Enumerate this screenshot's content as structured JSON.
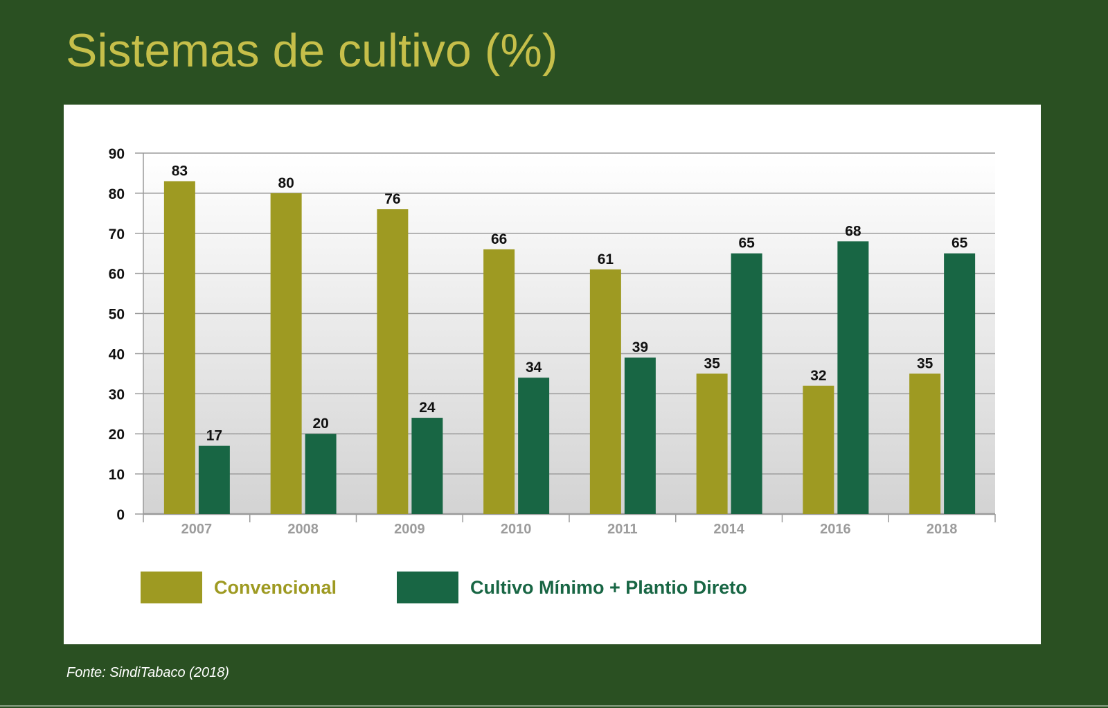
{
  "title": "Sistemas de cultivo (%)",
  "source": "Fonte: SindiTabaco (2018)",
  "colors": {
    "background": "#2a5022",
    "title": "#c6bf4a",
    "convencional": "#9e9a22",
    "cultivo_minimo": "#186644"
  },
  "chart_data": {
    "type": "bar",
    "title": "Sistemas de cultivo (%)",
    "categories": [
      "2007",
      "2008",
      "2009",
      "2010",
      "2011",
      "2014",
      "2016",
      "2018"
    ],
    "series": [
      {
        "name": "Convencional",
        "color": "#9e9a22",
        "values": [
          83,
          80,
          76,
          66,
          61,
          35,
          32,
          35
        ]
      },
      {
        "name": "Cultivo Mínimo + Plantio Direto",
        "color": "#186644",
        "values": [
          17,
          20,
          24,
          34,
          39,
          65,
          68,
          65
        ]
      }
    ],
    "yticks": [
      "0",
      "10",
      "20",
      "30",
      "40",
      "50",
      "60",
      "70",
      "80",
      "90"
    ],
    "ylim": [
      0,
      90
    ],
    "grid": true,
    "legend": "bottom-left",
    "xlabel": "",
    "ylabel": ""
  }
}
